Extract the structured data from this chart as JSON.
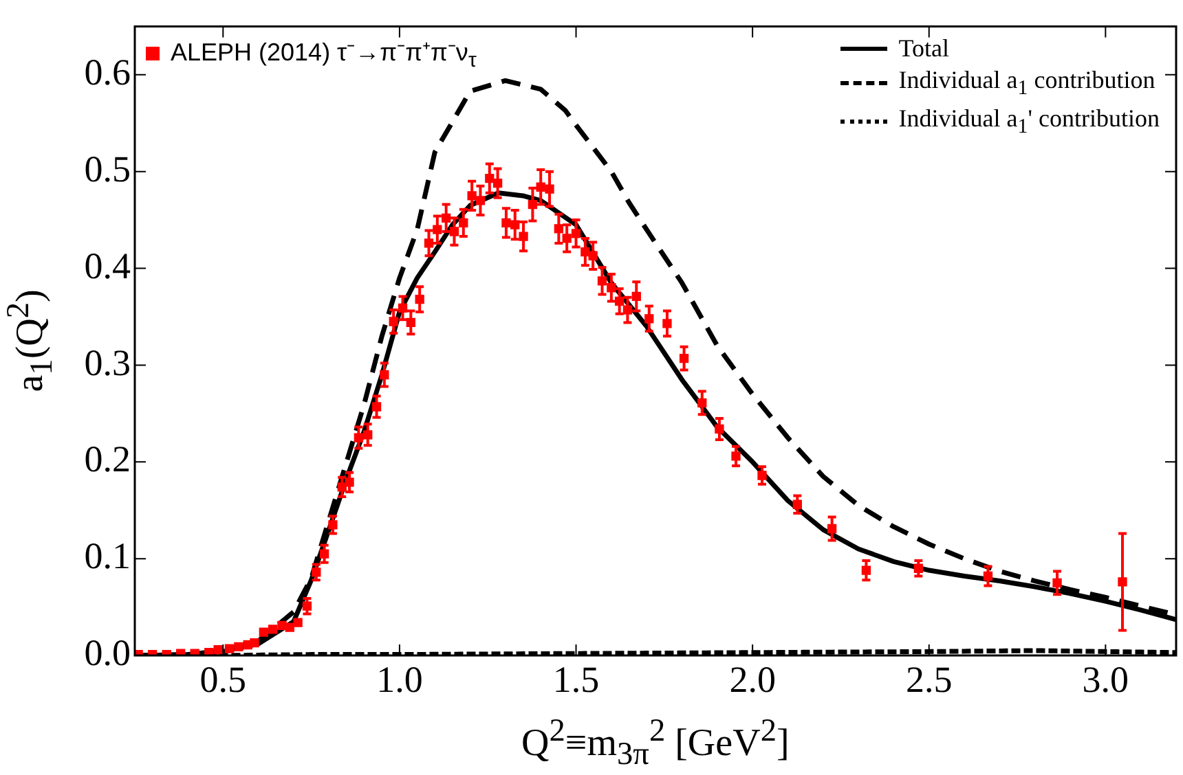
{
  "chart_data": {
    "type": "scatter",
    "xlabel": "Q$^{2}$≡m$_{3π}$$^{2}$ [GeV$^{2}$]",
    "ylabel": "a$_{1}$(Q$^{2}$)",
    "xlim": [
      0.25,
      3.2
    ],
    "ylim": [
      0,
      0.65
    ],
    "xticks": [
      {
        "value": 0.5,
        "label": "0.5"
      },
      {
        "value": 1,
        "label": "1.0"
      },
      {
        "value": 1.5,
        "label": "1.5"
      },
      {
        "value": 2,
        "label": "2.0"
      },
      {
        "value": 2.5,
        "label": "2.5"
      },
      {
        "value": 3,
        "label": "3.0"
      }
    ],
    "yticks": [
      {
        "value": 0,
        "label": "0.0"
      },
      {
        "value": 0.1,
        "label": "0.1"
      },
      {
        "value": 0.2,
        "label": "0.2"
      },
      {
        "value": 0.3,
        "label": "0.3"
      },
      {
        "value": 0.4,
        "label": "0.4"
      },
      {
        "value": 0.5,
        "label": "0.5"
      },
      {
        "value": 0.6,
        "label": "0.6"
      }
    ],
    "grid": false,
    "legend": "top",
    "series": [
      {
        "name": "ALEPH (2014) τ⁻→π⁻π⁺π⁻ν$_{τ}$",
        "marker": "square",
        "color": "#ff0000",
        "x": [
          0.26,
          0.3,
          0.34,
          0.38,
          0.42,
          0.46,
          0.486,
          0.518,
          0.544,
          0.57,
          0.589,
          0.615,
          0.641,
          0.667,
          0.689,
          0.712,
          0.738,
          0.764,
          0.787,
          0.811,
          0.837,
          0.858,
          0.884,
          0.91,
          0.935,
          0.957,
          0.983,
          1.009,
          1.032,
          1.057,
          1.083,
          1.107,
          1.132,
          1.155,
          1.181,
          1.205,
          1.229,
          1.255,
          1.278,
          1.302,
          1.327,
          1.351,
          1.377,
          1.4,
          1.425,
          1.451,
          1.474,
          1.5,
          1.526,
          1.548,
          1.574,
          1.6,
          1.623,
          1.646,
          1.671,
          1.707,
          1.758,
          1.806,
          1.857,
          1.906,
          1.953,
          2.027,
          2.127,
          2.225,
          2.322,
          2.47,
          2.667,
          2.863,
          3.048
        ],
        "values": [
          0.001,
          0.001,
          0.001,
          0.002,
          0.002,
          0.003,
          0.006,
          0.007,
          0.009,
          0.011,
          0.013,
          0.024,
          0.027,
          0.031,
          0.029,
          0.034,
          0.051,
          0.086,
          0.105,
          0.135,
          0.174,
          0.179,
          0.225,
          0.228,
          0.257,
          0.29,
          0.345,
          0.359,
          0.344,
          0.368,
          0.426,
          0.44,
          0.452,
          0.438,
          0.447,
          0.475,
          0.47,
          0.493,
          0.488,
          0.447,
          0.445,
          0.433,
          0.466,
          0.484,
          0.482,
          0.441,
          0.431,
          0.436,
          0.417,
          0.413,
          0.387,
          0.38,
          0.366,
          0.357,
          0.371,
          0.348,
          0.343,
          0.307,
          0.261,
          0.234,
          0.206,
          0.186,
          0.156,
          0.131,
          0.088,
          0.09,
          0.082,
          0.075,
          0.076
        ],
        "errors": [
          null,
          null,
          null,
          null,
          null,
          null,
          null,
          null,
          null,
          null,
          null,
          null,
          null,
          null,
          null,
          null,
          0.008,
          0.008,
          0.009,
          0.009,
          0.01,
          0.01,
          0.011,
          0.011,
          0.011,
          0.012,
          0.012,
          0.012,
          0.012,
          0.013,
          0.013,
          0.014,
          0.014,
          0.014,
          0.014,
          0.015,
          0.015,
          0.015,
          0.015,
          0.015,
          0.015,
          0.015,
          0.017,
          0.018,
          0.018,
          0.015,
          0.014,
          0.014,
          0.014,
          0.014,
          0.014,
          0.014,
          0.013,
          0.013,
          0.015,
          0.013,
          0.013,
          0.012,
          0.012,
          0.011,
          0.01,
          0.009,
          0.009,
          0.012,
          0.01,
          0.008,
          0.01,
          0.012,
          0.05
        ]
      },
      {
        "name": "Total",
        "type": "line",
        "line_style": "solid",
        "color": "#000000",
        "x": [
          0.25,
          0.4,
          0.5,
          0.6,
          0.7,
          0.75,
          0.8,
          0.85,
          0.9,
          0.95,
          1.0,
          1.05,
          1.1,
          1.15,
          1.2,
          1.28,
          1.35,
          1.4,
          1.5,
          1.6,
          1.7,
          1.8,
          1.9,
          2.0,
          2.1,
          2.2,
          2.3,
          2.4,
          2.5,
          2.6,
          2.7,
          2.8,
          2.9,
          3.0,
          3.1,
          3.2
        ],
        "values": [
          0,
          0.001,
          0.004,
          0.012,
          0.035,
          0.078,
          0.13,
          0.183,
          0.232,
          0.29,
          0.355,
          0.39,
          0.417,
          0.445,
          0.465,
          0.478,
          0.475,
          0.47,
          0.445,
          0.385,
          0.34,
          0.285,
          0.236,
          0.2,
          0.16,
          0.13,
          0.11,
          0.097,
          0.088,
          0.082,
          0.077,
          0.071,
          0.064,
          0.056,
          0.047,
          0.037
        ]
      },
      {
        "name": "Individual a$_{1}$ contribution",
        "type": "line",
        "line_style": "dashed",
        "color": "#000000",
        "x": [
          0.25,
          0.4,
          0.5,
          0.6,
          0.7,
          0.75,
          0.8,
          0.85,
          0.9,
          0.95,
          1.0,
          1.05,
          1.1,
          1.2,
          1.3,
          1.4,
          1.47,
          1.5,
          1.6,
          1.65,
          1.7,
          1.8,
          1.9,
          2.0,
          2.1,
          2.2,
          2.3,
          2.4,
          2.5,
          2.6,
          2.7,
          2.8,
          2.9,
          3.0,
          3.1,
          3.2
        ],
        "values": [
          0,
          0.001,
          0.005,
          0.015,
          0.045,
          0.08,
          0.14,
          0.2,
          0.26,
          0.33,
          0.39,
          0.44,
          0.52,
          0.583,
          0.594,
          0.585,
          0.563,
          0.548,
          0.5,
          0.468,
          0.44,
          0.385,
          0.32,
          0.27,
          0.225,
          0.185,
          0.155,
          0.133,
          0.115,
          0.1,
          0.087,
          0.077,
          0.068,
          0.06,
          0.051,
          0.042
        ]
      },
      {
        "name": "Individual a$_{1}$' contribution",
        "type": "line",
        "line_style": "dotted",
        "color": "#000000",
        "x": [
          0.25,
          0.5,
          0.75,
          1.0,
          1.5,
          2.0,
          2.5,
          2.8,
          3.0,
          3.2
        ],
        "values": [
          0,
          0,
          0.001,
          0.001,
          0.002,
          0.003,
          0.004,
          0.005,
          0.004,
          0.003
        ]
      }
    ]
  }
}
